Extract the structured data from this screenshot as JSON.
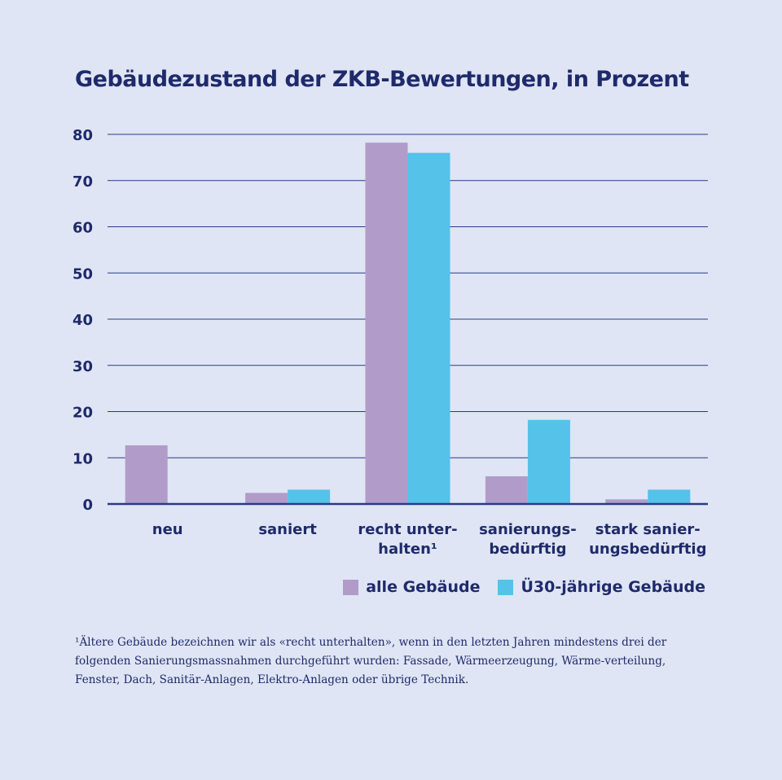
{
  "title": "Gebäudezustand der ZKB-Bewertungen, in Prozent",
  "colors": {
    "background": "#dfe5f4",
    "text": "#1f2a6b",
    "series_alle": "#b19cc9",
    "series_ue30": "#55c2ea",
    "gridline": "#2b3a85"
  },
  "chart_data": {
    "type": "bar",
    "title": "Gebäudezustand der ZKB-Bewertungen, in Prozent",
    "categories": [
      [
        "neu"
      ],
      [
        "saniert"
      ],
      [
        "recht unter-",
        "halten¹"
      ],
      [
        "sanierungs-",
        "bedürftig"
      ],
      [
        "stark sanier-",
        "ungsbedürftig"
      ]
    ],
    "series": [
      {
        "name": "alle Gebäude",
        "color": "#b19cc9",
        "values": [
          12.7,
          2.4,
          78.2,
          6.0,
          1.0
        ]
      },
      {
        "name": "Ü30-jährige Gebäude",
        "color": "#55c2ea",
        "values": [
          0,
          3.1,
          76.0,
          18.2,
          3.1
        ]
      }
    ],
    "yticks": [
      0,
      10,
      20,
      30,
      40,
      50,
      60,
      70,
      80
    ],
    "ylim": [
      0,
      80
    ],
    "xlabel": "",
    "ylabel": "",
    "grid": true,
    "legend": "bottom-right"
  },
  "legend": [
    {
      "label": "alle Gebäude",
      "color": "#b19cc9"
    },
    {
      "label": "Ü30-jährige Gebäude",
      "color": "#55c2ea"
    }
  ],
  "footnote": "¹Ältere Gebäude bezeichnen wir als «recht unterhalten», wenn in den letzten Jahren mindestens drei der folgenden Sanierungsmassnahmen durchgeführt wurden: Fassade, Wärmeerzeugung, Wärme-verteilung, Fenster, Dach, Sanitär-Anlagen, Elektro-Anlagen oder übrige Technik."
}
